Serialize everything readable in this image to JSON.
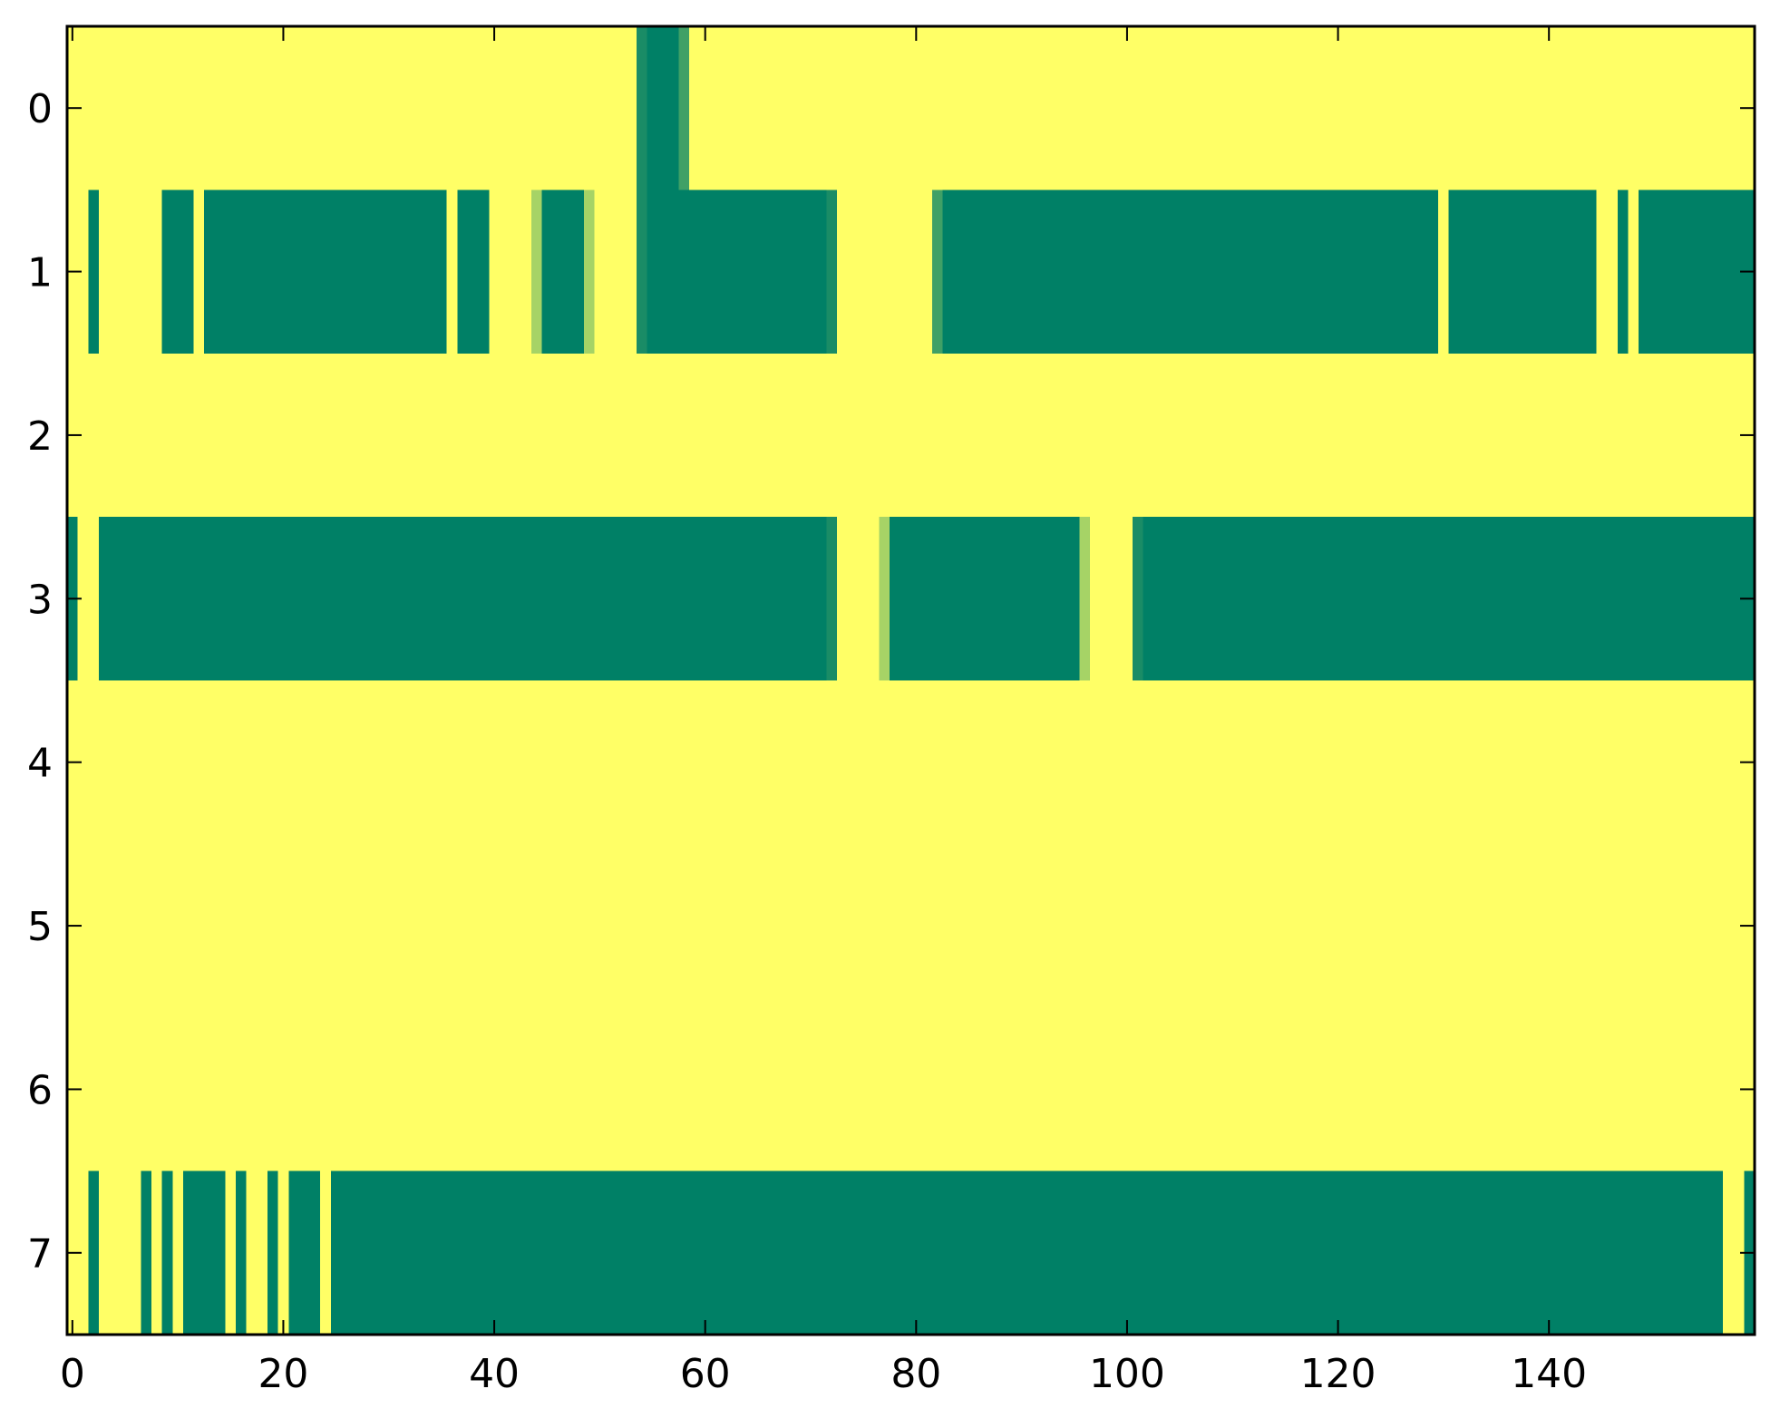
{
  "chart_data": {
    "type": "heatmap",
    "title": "",
    "xlabel": "",
    "ylabel": "",
    "xlim": [
      -0.5,
      159.5
    ],
    "ylim": [
      7.5,
      -0.5
    ],
    "x_ticks": [
      0,
      20,
      40,
      60,
      80,
      100,
      120,
      140
    ],
    "y_ticks": [
      0,
      1,
      2,
      3,
      4,
      5,
      6,
      7
    ],
    "grid": false,
    "legend": "none",
    "n_rows": 8,
    "n_cols": 160,
    "background_value": 1.0,
    "background_color": "#ffff66",
    "colors": {
      "1.0": "#ffff66",
      "0.0": "#008066",
      "0.15": "#1a8c66",
      "0.25": "#40a066",
      "0.6": "#a6d366"
    },
    "cells": [
      {
        "row": 0,
        "col_start": 54,
        "col_end": 54,
        "value": 0.15
      },
      {
        "row": 0,
        "col_start": 55,
        "col_end": 57,
        "value": 0.0
      },
      {
        "row": 0,
        "col_start": 58,
        "col_end": 58,
        "value": 0.25
      },
      {
        "row": 1,
        "col_start": 2,
        "col_end": 2,
        "value": 0.0
      },
      {
        "row": 1,
        "col_start": 9,
        "col_end": 11,
        "value": 0.0
      },
      {
        "row": 1,
        "col_start": 13,
        "col_end": 35,
        "value": 0.0
      },
      {
        "row": 1,
        "col_start": 37,
        "col_end": 39,
        "value": 0.0
      },
      {
        "row": 1,
        "col_start": 44,
        "col_end": 44,
        "value": 0.6
      },
      {
        "row": 1,
        "col_start": 45,
        "col_end": 48,
        "value": 0.0
      },
      {
        "row": 1,
        "col_start": 49,
        "col_end": 49,
        "value": 0.6
      },
      {
        "row": 1,
        "col_start": 54,
        "col_end": 54,
        "value": 0.15
      },
      {
        "row": 1,
        "col_start": 55,
        "col_end": 71,
        "value": 0.0
      },
      {
        "row": 1,
        "col_start": 72,
        "col_end": 72,
        "value": 0.15
      },
      {
        "row": 1,
        "col_start": 82,
        "col_end": 82,
        "value": 0.25
      },
      {
        "row": 1,
        "col_start": 83,
        "col_end": 129,
        "value": 0.0
      },
      {
        "row": 1,
        "col_start": 131,
        "col_end": 144,
        "value": 0.0
      },
      {
        "row": 1,
        "col_start": 147,
        "col_end": 147,
        "value": 0.0
      },
      {
        "row": 1,
        "col_start": 149,
        "col_end": 159,
        "value": 0.0
      },
      {
        "row": 3,
        "col_start": 0,
        "col_end": 0,
        "value": 0.0
      },
      {
        "row": 3,
        "col_start": 3,
        "col_end": 71,
        "value": 0.0
      },
      {
        "row": 3,
        "col_start": 72,
        "col_end": 72,
        "value": 0.15
      },
      {
        "row": 3,
        "col_start": 77,
        "col_end": 77,
        "value": 0.6
      },
      {
        "row": 3,
        "col_start": 78,
        "col_end": 95,
        "value": 0.0
      },
      {
        "row": 3,
        "col_start": 96,
        "col_end": 96,
        "value": 0.6
      },
      {
        "row": 3,
        "col_start": 101,
        "col_end": 101,
        "value": 0.15
      },
      {
        "row": 3,
        "col_start": 102,
        "col_end": 159,
        "value": 0.0
      },
      {
        "row": 7,
        "col_start": 2,
        "col_end": 2,
        "value": 0.0
      },
      {
        "row": 7,
        "col_start": 7,
        "col_end": 7,
        "value": 0.0
      },
      {
        "row": 7,
        "col_start": 9,
        "col_end": 9,
        "value": 0.0
      },
      {
        "row": 7,
        "col_start": 11,
        "col_end": 14,
        "value": 0.0
      },
      {
        "row": 7,
        "col_start": 16,
        "col_end": 16,
        "value": 0.0
      },
      {
        "row": 7,
        "col_start": 19,
        "col_end": 19,
        "value": 0.0
      },
      {
        "row": 7,
        "col_start": 21,
        "col_end": 23,
        "value": 0.0
      },
      {
        "row": 7,
        "col_start": 25,
        "col_end": 156,
        "value": 0.0
      },
      {
        "row": 7,
        "col_start": 159,
        "col_end": 159,
        "value": 0.0
      }
    ]
  }
}
